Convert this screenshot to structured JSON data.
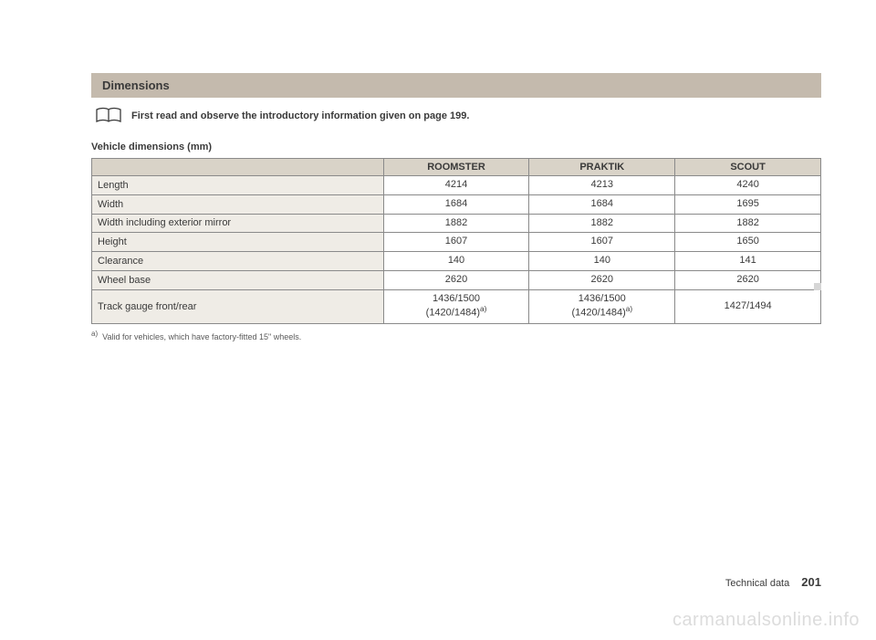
{
  "section_title": "Dimensions",
  "note_text": "First read and observe the introductory information given on page 199.",
  "table_caption": "Vehicle dimensions (mm)",
  "columns": [
    "",
    "ROOMSTER",
    "PRAKTIK",
    "SCOUT"
  ],
  "rows": [
    {
      "label": "Length",
      "vals": [
        "4214",
        "4213",
        "4240"
      ]
    },
    {
      "label": "Width",
      "vals": [
        "1684",
        "1684",
        "1695"
      ]
    },
    {
      "label": "Width including exterior mirror",
      "vals": [
        "1882",
        "1882",
        "1882"
      ]
    },
    {
      "label": "Height",
      "vals": [
        "1607",
        "1607",
        "1650"
      ]
    },
    {
      "label": "Clearance",
      "vals": [
        "140",
        "140",
        "141"
      ]
    },
    {
      "label": "Wheel base",
      "vals": [
        "2620",
        "2620",
        "2620"
      ]
    },
    {
      "label": "Track gauge front/rear",
      "vals": [
        "1436/1500\n(1420/1484)ᵃ⁾",
        "1436/1500\n(1420/1484)ᵃ⁾",
        "1427/1494"
      ]
    }
  ],
  "footnote_marker": "a)",
  "footnote_text": "Valid for vehicles, which have factory-fitted 15\" wheels.",
  "footer_section": "Technical data",
  "page_number": "201",
  "watermark": "carmanualsonline.info",
  "colors": {
    "header_bg": "#c4baad",
    "th_bg": "#d9d3c8",
    "label_bg": "#efece6",
    "border": "#8a8a8a",
    "text": "#3a3a3a",
    "watermark": "#dcdcdc"
  }
}
